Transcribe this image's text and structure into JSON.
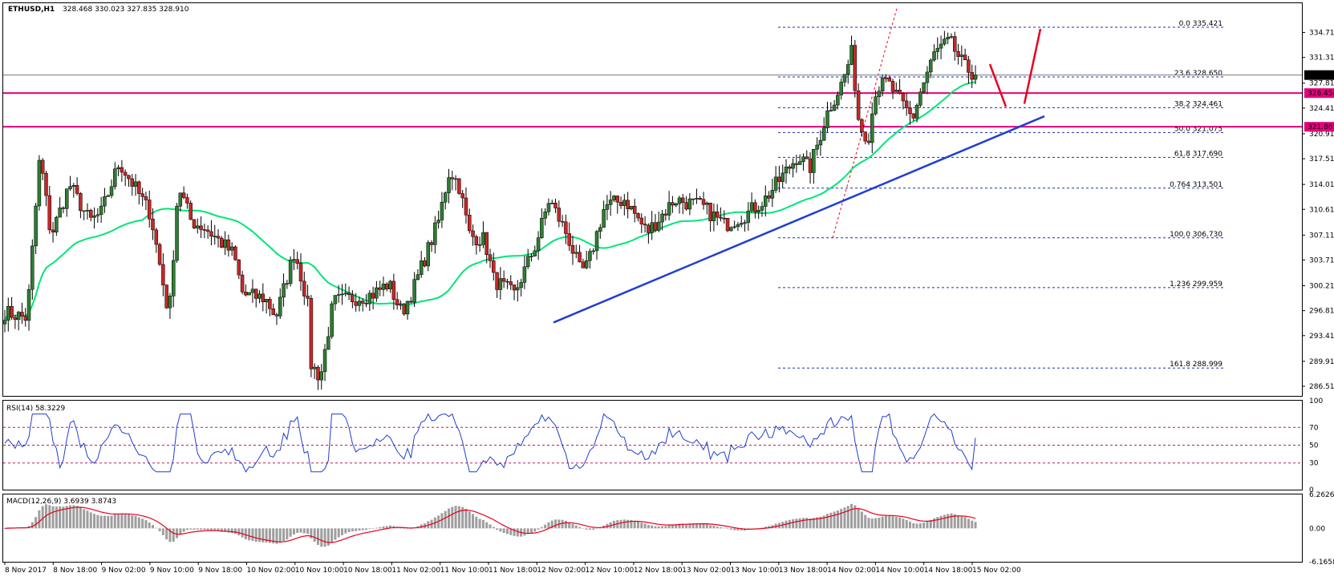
{
  "header": {
    "symbol": "ETHUSD,H1",
    "ohlc": "328.468 330.023 327.835 328.910"
  },
  "colors": {
    "bull": "#2e7d32",
    "bear": "#c62828",
    "ma": "#00e676",
    "trend": "#1f3fd0",
    "hline": "#e6007e",
    "fib": "#1a2fb5",
    "arrow": "#e8001c",
    "rsi": "#1f3fd0",
    "macd_signal": "#e8001c",
    "macd_hist": "#9e9e9e",
    "level_guides": "#c2185b"
  },
  "chart_data": [
    {
      "type": "candlestick",
      "title": "ETHUSD,H1",
      "ylim": [
        285.2,
        338.7
      ],
      "price_ticks": [
        "334.710",
        "331.310",
        "327.810",
        "324.410",
        "320.910",
        "317.510",
        "314.010",
        "310.610",
        "307.110",
        "303.710",
        "300.210",
        "296.810",
        "293.410",
        "289.910",
        "286.510"
      ],
      "tick_values": [
        334.71,
        331.31,
        327.81,
        324.41,
        320.91,
        317.51,
        314.01,
        310.61,
        307.11,
        303.71,
        300.21,
        296.81,
        293.41,
        289.91,
        286.51
      ],
      "x_labels": [
        "8 Nov 2017",
        "8 Nov 18:00",
        "9 Nov 02:00",
        "9 Nov 10:00",
        "9 Nov 18:00",
        "10 Nov 02:00",
        "10 Nov 10:00",
        "10 Nov 18:00",
        "11 Nov 02:00",
        "11 Nov 10:00",
        "11 Nov 18:00",
        "12 Nov 02:00",
        "12 Nov 10:00",
        "12 Nov 18:00",
        "13 Nov 02:00",
        "13 Nov 10:00",
        "13 Nov 18:00",
        "14 Nov 02:00",
        "14 Nov 10:00",
        "14 Nov 18:00",
        "15 Nov 02:00"
      ],
      "last_price": {
        "text": "328.910",
        "value": 328.91
      },
      "horizontal_levels": [
        {
          "text": "326.454",
          "value": 326.454
        },
        {
          "text": "321.867",
          "value": 321.867
        }
      ],
      "fibonacci": [
        {
          "text": "0.0  335.421",
          "value": 335.421
        },
        {
          "text": "23.6  328.650",
          "value": 328.65
        },
        {
          "text": "38.2  324.461",
          "value": 324.461
        },
        {
          "text": "50.0  321.075",
          "value": 321.075
        },
        {
          "text": "61.8  317.690",
          "value": 317.69
        },
        {
          "text": "0.764  313.501",
          "value": 313.501
        },
        {
          "text": "100.0  306.730",
          "value": 306.73
        },
        {
          "text": "1.236  299.959",
          "value": 299.959
        },
        {
          "text": "161.8  288.999",
          "value": 288.999
        }
      ],
      "anchors": [
        [
          0,
          296.6
        ],
        [
          12,
          295.8
        ],
        [
          19,
          318.0
        ],
        [
          25,
          307.0
        ],
        [
          35,
          314.0
        ],
        [
          46,
          309.0
        ],
        [
          52,
          310.0
        ],
        [
          62,
          317.0
        ],
        [
          69,
          314.2
        ],
        [
          79,
          310.0
        ],
        [
          84,
          303.0
        ],
        [
          89,
          296.0
        ],
        [
          94,
          314.0
        ],
        [
          101,
          309.0
        ],
        [
          109,
          308.0
        ],
        [
          124,
          304.5
        ],
        [
          129,
          299.0
        ],
        [
          141,
          298.5
        ],
        [
          147,
          296.0
        ],
        [
          157,
          305.0
        ],
        [
          164,
          298.0
        ],
        [
          166,
          289.5
        ],
        [
          171,
          287.7
        ],
        [
          178,
          298.0
        ],
        [
          199,
          299.0
        ],
        [
          208,
          300.5
        ],
        [
          215,
          296.5
        ],
        [
          221,
          299.5
        ],
        [
          235,
          309.0
        ],
        [
          241,
          316.0
        ],
        [
          246,
          314.0
        ],
        [
          252,
          307.0
        ],
        [
          260,
          306.5
        ],
        [
          265,
          301.0
        ],
        [
          276,
          299.0
        ],
        [
          288,
          306.0
        ],
        [
          295,
          312.0
        ],
        [
          305,
          307.0
        ],
        [
          312,
          302.0
        ],
        [
          316,
          303.0
        ],
        [
          325,
          311.0
        ],
        [
          336,
          312.0
        ],
        [
          348,
          307.5
        ],
        [
          355,
          309.5
        ],
        [
          363,
          312.0
        ],
        [
          378,
          311.0
        ],
        [
          390,
          308.5
        ],
        [
          402,
          310.0
        ],
        [
          412,
          312.0
        ],
        [
          430,
          318.0
        ],
        [
          436,
          316.0
        ],
        [
          446,
          324.0
        ],
        [
          454,
          328.0
        ],
        [
          459,
          332.0
        ],
        [
          463,
          322.0
        ],
        [
          468,
          320.5
        ],
        [
          472,
          327.0
        ],
        [
          478,
          328.0
        ],
        [
          486,
          325.0
        ],
        [
          492,
          323.0
        ],
        [
          496,
          326.5
        ],
        [
          504,
          332.0
        ],
        [
          512,
          333.5
        ],
        [
          520,
          330.0
        ],
        [
          526,
          328.9
        ]
      ]
    },
    {
      "type": "line",
      "title": "RSI(14) 58.3229",
      "ylim": [
        0,
        100
      ],
      "ticks": [
        "100",
        "70",
        "50",
        "30",
        "0"
      ],
      "tick_values": [
        100,
        70,
        50,
        30,
        0
      ],
      "levels": [
        70,
        50,
        30
      ],
      "last_value": 58.3229
    },
    {
      "type": "bar+line",
      "title": "MACD(12,26,9) 3.6939 3.8743",
      "ylim": [
        -6.1658,
        6.2626
      ],
      "ticks": [
        "6.2626",
        "0.00",
        "-6.1658"
      ],
      "tick_values": [
        6.2626,
        0.0,
        -6.1658
      ],
      "series": [
        {
          "name": "MACD",
          "last": 3.6939
        },
        {
          "name": "Signal",
          "last": 3.8743
        }
      ]
    }
  ]
}
